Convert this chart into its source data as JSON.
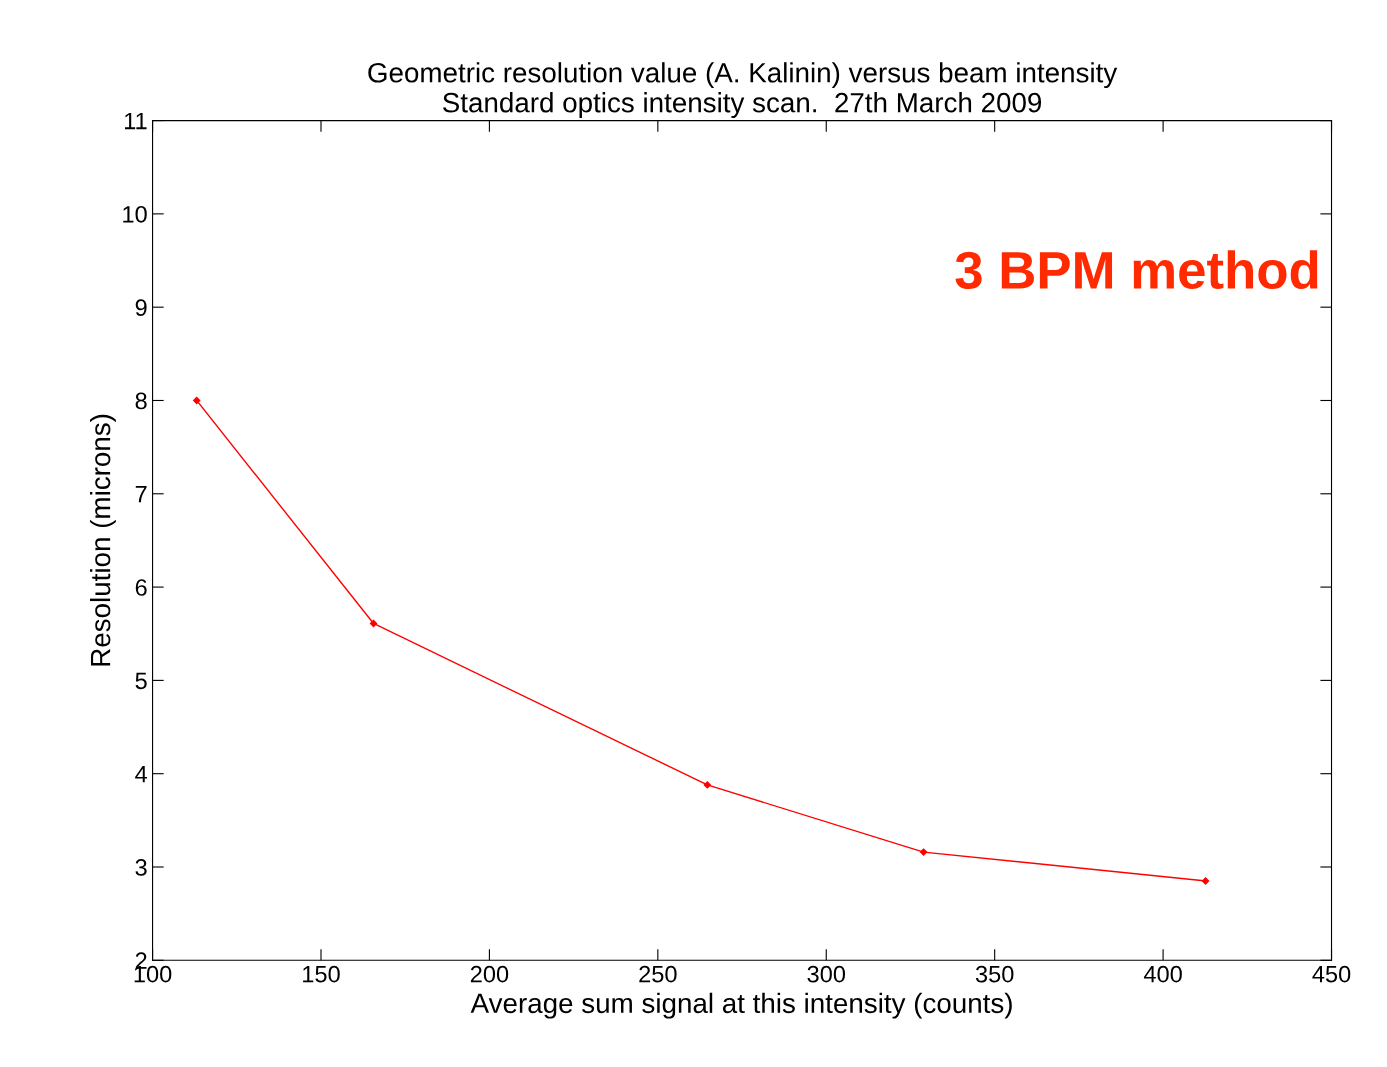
{
  "chart_data": {
    "type": "line",
    "title": "Geometric resolution value (A. Kalinin) versus beam intensity\nStandard optics intensity scan.  27th March 2009",
    "xlabel": "Average sum signal at this intensity (counts)",
    "ylabel": "Resolution (microns)",
    "x": [
      113.1,
      165.6,
      264.7,
      328.9,
      412.6
    ],
    "series": [
      {
        "color": "#ff0000",
        "values": [
          8.0,
          5.61,
          3.88,
          3.16,
          2.85
        ]
      }
    ],
    "xlim": [
      100,
      450
    ],
    "xticks": [
      100,
      150,
      200,
      250,
      300,
      350,
      400,
      450
    ],
    "ylim": [
      2,
      11
    ],
    "yticks": [
      2,
      3,
      4,
      5,
      6,
      7,
      8,
      9,
      10,
      11
    ],
    "grid": false,
    "legend": false,
    "marker": "diamond",
    "line_style": "solid",
    "annotations": [
      "3 BPM method"
    ]
  }
}
